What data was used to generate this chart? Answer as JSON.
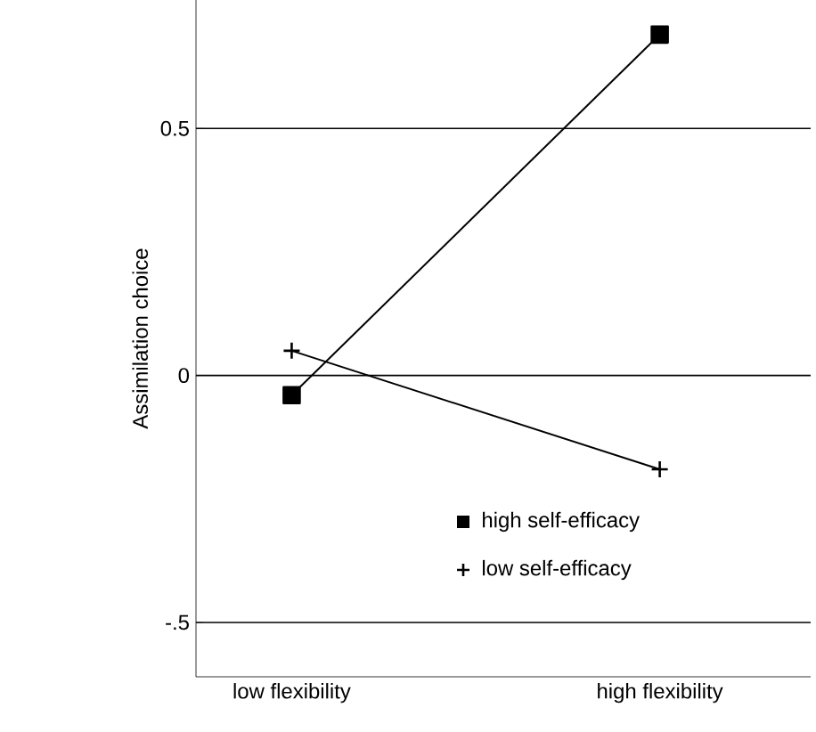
{
  "chart_data": {
    "type": "line",
    "ylabel": "Assimilation choice",
    "categories": [
      "low flexibility",
      "high flexibility"
    ],
    "series": [
      {
        "name": "high self-efficacy",
        "color": "#000000",
        "marker": "square",
        "values": [
          -0.04,
          0.69
        ]
      },
      {
        "name": "low self-efficacy",
        "color": "#000000",
        "marker": "cross",
        "values": [
          0.05,
          -0.19
        ]
      }
    ],
    "ylim": [
      -0.61,
      0.76
    ],
    "yticks": [
      {
        "value": 0.5,
        "label": "0.5"
      },
      {
        "value": 0,
        "label": "0"
      },
      {
        "value": -0.5,
        "label": "-.5"
      }
    ],
    "grid": "y",
    "legend": "bottom right",
    "line_style": "solid"
  }
}
